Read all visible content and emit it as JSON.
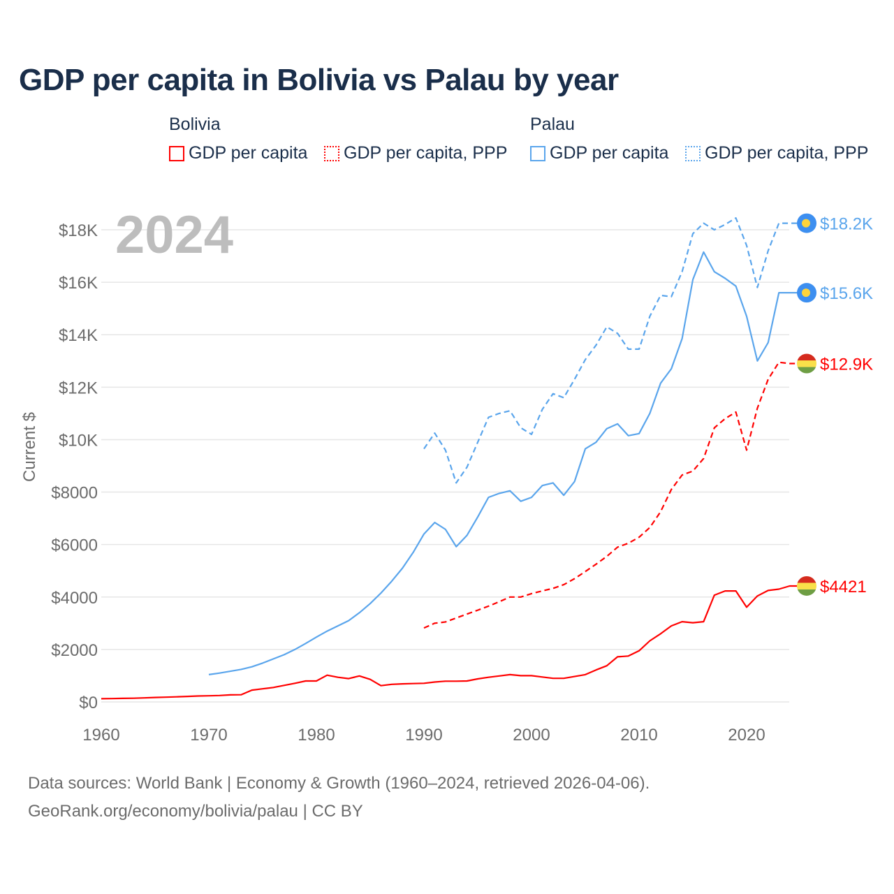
{
  "title": "GDP per capita in Bolivia vs Palau by year",
  "legend": {
    "groups": [
      {
        "name": "Bolivia",
        "items": [
          "GDP per capita",
          "GDP per capita, PPP"
        ]
      },
      {
        "name": "Palau",
        "items": [
          "GDP per capita",
          "GDP per capita, PPP"
        ]
      }
    ]
  },
  "footer": {
    "line1": "Data sources: World Bank | Economy & Growth (1960–2024, retrieved 2026-04-06).",
    "line2": "GeoRank.org/economy/bolivia/palau | CC BY"
  },
  "chart_data": {
    "type": "line",
    "title": "GDP per capita in Bolivia vs Palau by year",
    "year_label": "2024",
    "xlabel": "",
    "ylabel": "Current $",
    "xlim": [
      1960,
      2024
    ],
    "ylim": [
      0,
      18000
    ],
    "x_ticks": [
      1960,
      1970,
      1980,
      1990,
      2000,
      2010,
      2020
    ],
    "y_ticks": [
      0,
      2000,
      4000,
      6000,
      8000,
      10000,
      12000,
      14000,
      16000,
      18000
    ],
    "y_tick_labels": [
      "$0",
      "$2000",
      "$4000",
      "$6000",
      "$8000",
      "$10K",
      "$12K",
      "$14K",
      "$16K",
      "$18K"
    ],
    "grid": true,
    "legend_position": "top",
    "colors": {
      "bolivia": "#ff0000",
      "palau": "#5aa5ec"
    },
    "series": [
      {
        "name": "Bolivia GDP per capita",
        "country": "bolivia",
        "dash": false,
        "start": 1960,
        "end_label": "$4421",
        "values": [
          122,
          128,
          135,
          142,
          155,
          170,
          180,
          195,
          210,
          225,
          235,
          245,
          270,
          275,
          450,
          500,
          550,
          630,
          710,
          800,
          800,
          1020,
          940,
          890,
          990,
          860,
          620,
          670,
          690,
          700,
          710,
          760,
          790,
          790,
          800,
          880,
          940,
          990,
          1040,
          1000,
          1000,
          950,
          900,
          900,
          970,
          1040,
          1220,
          1380,
          1720,
          1750,
          1950,
          2330,
          2600,
          2900,
          3060,
          3020,
          3060,
          4070,
          4230,
          4230,
          3610,
          4040,
          4250,
          4300,
          4421
        ]
      },
      {
        "name": "Bolivia GDP per capita, PPP",
        "country": "bolivia",
        "dash": true,
        "start": 1990,
        "end_label": "$12.9K",
        "values": [
          2820,
          3000,
          3050,
          3200,
          3350,
          3500,
          3650,
          3820,
          4000,
          4000,
          4130,
          4230,
          4330,
          4470,
          4700,
          4970,
          5250,
          5550,
          5900,
          6050,
          6280,
          6650,
          7250,
          8100,
          8650,
          8800,
          9280,
          10450,
          10800,
          11050,
          9600,
          11200,
          12300,
          12950,
          12900
        ]
      },
      {
        "name": "Palau GDP per capita",
        "country": "palau",
        "dash": false,
        "start": 1970,
        "end_label": "$15.6K",
        "values": [
          1040,
          1100,
          1170,
          1240,
          1340,
          1480,
          1640,
          1800,
          2000,
          2230,
          2470,
          2700,
          2900,
          3100,
          3400,
          3750,
          4150,
          4600,
          5100,
          5700,
          6400,
          6840,
          6580,
          5920,
          6350,
          7050,
          7800,
          7950,
          8050,
          7650,
          7800,
          8250,
          8350,
          7880,
          8400,
          9650,
          9900,
          10420,
          10600,
          10150,
          10230,
          11000,
          12150,
          12700,
          13850,
          16100,
          17150,
          16400,
          16150,
          15850,
          14700,
          13000,
          13700,
          15600,
          15600
        ]
      },
      {
        "name": "Palau GDP per capita, PPP",
        "country": "palau",
        "dash": true,
        "start": 1990,
        "end_label": "$18.2K",
        "values": [
          9650,
          10250,
          9600,
          8350,
          8950,
          9900,
          10850,
          11000,
          11100,
          10450,
          10200,
          11150,
          11750,
          11600,
          12300,
          13050,
          13600,
          14300,
          14050,
          13450,
          13450,
          14700,
          15500,
          15450,
          16400,
          17850,
          18250,
          18000,
          18200,
          18450,
          17400,
          15800,
          17200,
          18250,
          18250
        ]
      }
    ]
  }
}
